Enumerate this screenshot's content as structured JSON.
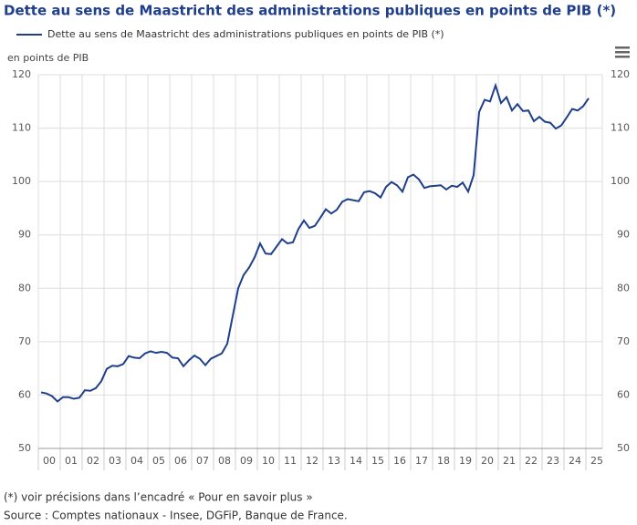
{
  "chart_data": {
    "type": "line",
    "title": "Dette au sens de Maastricht des administrations publiques en points de PIB (*)",
    "y_label": "en points de PIB",
    "year_labels": [
      "00",
      "01",
      "02",
      "03",
      "04",
      "05",
      "06",
      "07",
      "08",
      "09",
      "10",
      "11",
      "12",
      "13",
      "14",
      "15",
      "16",
      "17",
      "18",
      "19",
      "20",
      "21",
      "22",
      "23",
      "24",
      "25"
    ],
    "series": [
      {
        "name": "Dette au sens de Maastricht des administrations publiques en points de PIB (*)",
        "color": "#1f3f8a",
        "values": [
          60.5,
          60.3,
          59.8,
          58.8,
          59.6,
          59.6,
          59.3,
          59.5,
          60.9,
          60.8,
          61.3,
          62.6,
          64.9,
          65.5,
          65.4,
          65.8,
          67.3,
          67.0,
          66.9,
          67.8,
          68.2,
          67.9,
          68.1,
          67.9,
          67.0,
          66.9,
          65.4,
          66.5,
          67.4,
          66.8,
          65.6,
          66.8,
          67.3,
          67.8,
          69.6,
          74.8,
          80.0,
          82.5,
          83.9,
          85.8,
          88.4,
          86.5,
          86.4,
          87.8,
          89.2,
          88.4,
          88.6,
          91.1,
          92.7,
          91.3,
          91.7,
          93.2,
          94.8,
          94.0,
          94.7,
          96.2,
          96.7,
          96.5,
          96.3,
          98.0,
          98.2,
          97.8,
          97.0,
          99.0,
          99.9,
          99.3,
          98.1,
          100.8,
          101.3,
          100.4,
          98.8,
          99.1,
          99.2,
          99.3,
          98.5,
          99.2,
          99.0,
          99.8,
          98.1,
          101.2,
          113.0,
          115.3,
          115.0,
          118.0,
          114.7,
          115.8,
          113.3,
          114.5,
          113.2,
          113.3,
          111.3,
          112.1,
          111.2,
          111.0,
          109.9,
          110.5,
          112.0,
          113.6,
          113.3,
          114.1,
          115.6
        ]
      }
    ],
    "ylim": [
      50,
      120
    ],
    "yticks": [
      50,
      60,
      70,
      80,
      90,
      100,
      110,
      120
    ],
    "grid": true,
    "footnote": "(*) voir précisions dans l’encadré « Pour en savoir plus »",
    "source": "Source : Comptes nationaux - Insee, DGFiP, Banque de France."
  }
}
